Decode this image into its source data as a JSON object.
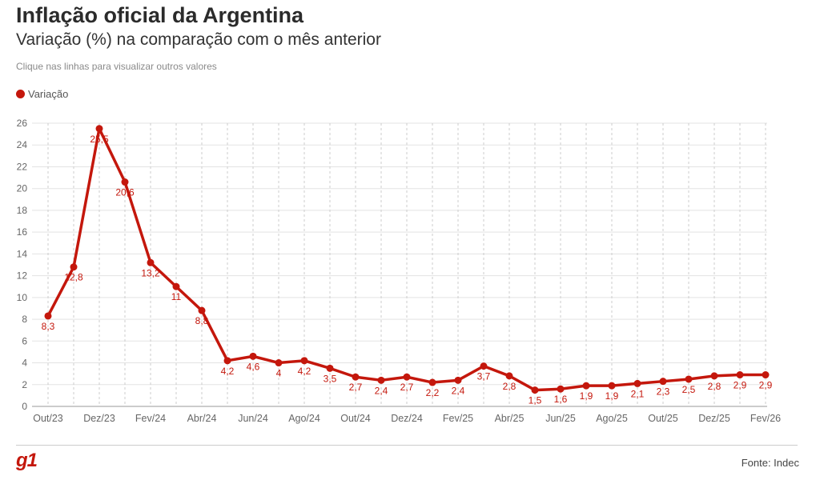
{
  "header": {
    "title": "Inflação oficial da Argentina",
    "subtitle": "Variação (%) na comparação com o mês anterior",
    "hint": "Clique nas linhas para visualizar outros valores"
  },
  "legend": {
    "label": "Variação"
  },
  "footer": {
    "logo": "g1",
    "source": "Fonte: Indec"
  },
  "colors": {
    "series": "#c4170c",
    "grid": "#cccccc",
    "logo": "#c4170c"
  },
  "chart_data": {
    "type": "line",
    "title": "Inflação oficial da Argentina",
    "subtitle": "Variação (%) na comparação com o mês anterior",
    "x": [
      "Out/23",
      "Nov/23",
      "Dez/23",
      "Jan/24",
      "Fev/24",
      "Mar/24",
      "Abr/24",
      "Mai/24",
      "Jun/24",
      "Jul/24",
      "Ago/24",
      "Set/24",
      "Out/24",
      "Nov/24",
      "Dez/24",
      "Jan/25",
      "Fev/25",
      "Mar/25",
      "Abr/25",
      "Mai/25",
      "Jun/25",
      "Jul/25",
      "Ago/25",
      "Set/25",
      "Out/25",
      "Nov/25",
      "Dez/25",
      "Jan/26",
      "Fev/26"
    ],
    "x_tick_labels": [
      "Out/23",
      "Dez/23",
      "Fev/24",
      "Abr/24",
      "Jun/24",
      "Ago/24",
      "Out/24",
      "Dez/24",
      "Fev/25",
      "Abr/25",
      "Jun/25",
      "Ago/25",
      "Out/25",
      "Dez/25",
      "Fev/26"
    ],
    "series": [
      {
        "name": "Variação",
        "values": [
          8.3,
          12.8,
          25.5,
          20.6,
          13.2,
          11,
          8.8,
          4.2,
          4.6,
          4,
          4.2,
          3.5,
          2.7,
          2.4,
          2.7,
          2.2,
          2.4,
          3.7,
          2.8,
          1.5,
          1.6,
          1.9,
          1.9,
          2.1,
          2.3,
          2.5,
          2.8,
          2.9,
          2.9
        ],
        "labels": [
          "8,3",
          "12,8",
          "25,5",
          "20,6",
          "13,2",
          "11",
          "8,8",
          "4,2",
          "4,6",
          "4",
          "4,2",
          "3,5",
          "2,7",
          "2,4",
          "2,7",
          "2,2",
          "2,4",
          "3,7",
          "2,8",
          "1,5",
          "1,6",
          "1,9",
          "1,9",
          "2,1",
          "2,3",
          "2,5",
          "2,8",
          "2,9",
          "2,9"
        ]
      }
    ],
    "y_ticks": [
      0,
      2,
      4,
      6,
      8,
      10,
      12,
      14,
      16,
      18,
      20,
      22,
      24,
      26
    ],
    "ylim": [
      0,
      26
    ],
    "grid": true,
    "legend_position": "top-left"
  }
}
